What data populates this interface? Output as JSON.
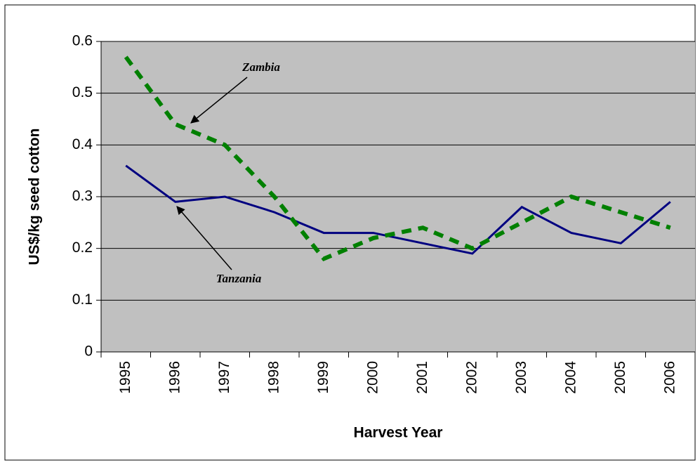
{
  "chart_data": {
    "type": "line",
    "xlabel": "Harvest Year",
    "ylabel": "US$/kg seed cotton",
    "categories": [
      "1995",
      "1996",
      "1997",
      "1998",
      "1999",
      "2000",
      "2001",
      "2002",
      "2003",
      "2004",
      "2005",
      "2006"
    ],
    "series": [
      {
        "name": "Tanzania",
        "color": "#000080",
        "line_style": "solid",
        "values": [
          0.36,
          0.29,
          0.3,
          0.27,
          0.23,
          0.23,
          0.21,
          0.19,
          0.28,
          0.23,
          0.21,
          0.29
        ]
      },
      {
        "name": "Zambia",
        "color": "#008000",
        "line_style": "dashed",
        "values": [
          0.57,
          0.44,
          0.4,
          0.3,
          0.18,
          0.22,
          0.24,
          0.2,
          0.25,
          0.3,
          0.27,
          0.24
        ]
      }
    ],
    "ylim": [
      0,
      0.6
    ],
    "yticks": [
      0,
      0.1,
      0.2,
      0.3,
      0.4,
      0.5,
      0.6
    ],
    "grid": true,
    "plot_background": "#c0c0c0"
  }
}
